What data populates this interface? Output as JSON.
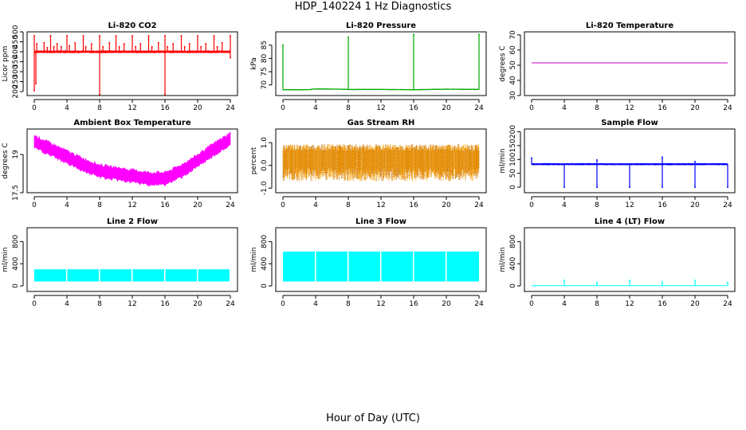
{
  "figure": {
    "title": "HDP_140224  1 Hz Diagnostics",
    "xlabel": "Hour of Day (UTC)"
  },
  "chart_data": [
    {
      "type": "line",
      "title": "Li-820 CO2",
      "ylabel": "Licor ppm",
      "color": "#ff0000",
      "xlim": [
        0,
        24
      ],
      "xticks": [
        0,
        4,
        8,
        12,
        16,
        20,
        24
      ],
      "ylim": [
        180,
        500
      ],
      "yticks": [
        200,
        250,
        300,
        350,
        400,
        450,
        500
      ],
      "series": [
        {
          "kind": "band",
          "baseline": [
            [
              0,
              400
            ],
            [
              24,
              400
            ]
          ],
          "spread": 6,
          "spikes_up": [
            [
              0,
              480
            ],
            [
              0.3,
              440
            ],
            [
              1.2,
              445
            ],
            [
              1.6,
              420
            ],
            [
              2,
              480
            ],
            [
              2.4,
              425
            ],
            [
              2.8,
              440
            ],
            [
              3.3,
              425
            ],
            [
              4,
              480
            ],
            [
              4.3,
              430
            ],
            [
              5,
              445
            ],
            [
              6,
              480
            ],
            [
              6.3,
              425
            ],
            [
              7,
              440
            ],
            [
              8,
              480
            ],
            [
              8.4,
              425
            ],
            [
              9.2,
              445
            ],
            [
              10,
              480
            ],
            [
              10.4,
              425
            ],
            [
              11,
              440
            ],
            [
              12,
              480
            ],
            [
              12.4,
              425
            ],
            [
              13,
              440
            ],
            [
              14,
              480
            ],
            [
              14.4,
              425
            ],
            [
              15.2,
              445
            ],
            [
              16,
              480
            ],
            [
              16.3,
              425
            ],
            [
              17,
              440
            ],
            [
              18,
              480
            ],
            [
              18.4,
              425
            ],
            [
              19,
              440
            ],
            [
              20,
              480
            ],
            [
              20.4,
              425
            ],
            [
              21,
              440
            ],
            [
              22,
              480
            ],
            [
              22.4,
              425
            ],
            [
              23,
              445
            ],
            [
              24,
              480
            ]
          ],
          "spikes_down": [
            [
              0,
              205
            ],
            [
              0.2,
              240
            ],
            [
              8,
              185
            ],
            [
              16,
              185
            ],
            [
              24,
              370
            ]
          ]
        }
      ]
    },
    {
      "type": "line",
      "title": "Li-820 Pressure",
      "ylabel": "kPa",
      "color": "#00aa00",
      "xlim": [
        0,
        24
      ],
      "xticks": [
        0,
        4,
        8,
        12,
        16,
        20,
        24
      ],
      "ylim": [
        66,
        90
      ],
      "yticks": [
        70,
        75,
        80,
        85
      ],
      "series": [
        {
          "kind": "band",
          "baseline": [
            [
              0,
              68.2
            ],
            [
              3,
              68.2
            ],
            [
              4,
              68.5
            ],
            [
              7,
              68.4
            ],
            [
              8,
              68.3
            ],
            [
              12,
              68.3
            ],
            [
              16,
              68.2
            ],
            [
              20,
              68.4
            ],
            [
              24,
              68.3
            ]
          ],
          "spread": 0.15,
          "spikes_up": [
            [
              0,
              85
            ],
            [
              8,
              88
            ],
            [
              16,
              89
            ],
            [
              24,
              89
            ]
          ],
          "spikes_down": []
        }
      ]
    },
    {
      "type": "line",
      "title": "Li-820 Temperature",
      "ylabel": "degrees C",
      "color": "#cc00cc",
      "xlim": [
        0,
        24
      ],
      "xticks": [
        0,
        4,
        8,
        12,
        16,
        20,
        24
      ],
      "ylim": [
        30,
        72
      ],
      "yticks": [
        30,
        40,
        50,
        60,
        70
      ],
      "series": [
        {
          "kind": "line",
          "points": [
            [
              0,
              51.5
            ],
            [
              24,
              51.5
            ]
          ]
        }
      ]
    },
    {
      "type": "line",
      "title": "Ambient Box Temperature",
      "ylabel": "degrees C",
      "color": "#ff00ff",
      "xlim": [
        0,
        24
      ],
      "xticks": [
        0,
        4,
        8,
        12,
        16,
        20,
        24
      ],
      "ylim": [
        17.5,
        20.0
      ],
      "yticks": [
        17.5,
        19.0
      ],
      "series": [
        {
          "kind": "band",
          "baseline": [
            [
              0,
              19.5
            ],
            [
              2,
              19.2
            ],
            [
              4,
              18.9
            ],
            [
              6,
              18.6
            ],
            [
              8,
              18.35
            ],
            [
              10,
              18.25
            ],
            [
              12,
              18.15
            ],
            [
              14,
              18.05
            ],
            [
              16,
              18.05
            ],
            [
              18,
              18.35
            ],
            [
              20,
              18.75
            ],
            [
              22,
              19.2
            ],
            [
              24,
              19.6
            ]
          ],
          "spread": 0.3,
          "spikes_up": [],
          "spikes_down": []
        }
      ]
    },
    {
      "type": "line",
      "title": "Gas Stream RH",
      "ylabel": "percent",
      "color": "#ffa500",
      "edge": "#c87000",
      "xlim": [
        0,
        24
      ],
      "xticks": [
        0,
        4,
        8,
        12,
        16,
        20,
        24
      ],
      "ylim": [
        -1.2,
        1.6
      ],
      "yticks": [
        -1.0,
        0.0,
        1.0
      ],
      "series": [
        {
          "kind": "noise",
          "baseline": [
            [
              0,
              0.15
            ],
            [
              24,
              0.15
            ]
          ],
          "spread": 0.65,
          "low": -0.8,
          "high": 1.1
        }
      ]
    },
    {
      "type": "line",
      "title": "Sample Flow",
      "ylabel": "ml/min",
      "color": "#0000ff",
      "xlim": [
        0,
        24
      ],
      "xticks": [
        0,
        4,
        8,
        12,
        16,
        20,
        24
      ],
      "ylim": [
        -20,
        210
      ],
      "yticks": [
        0,
        50,
        100,
        150,
        200
      ],
      "series": [
        {
          "kind": "band",
          "baseline": [
            [
              0,
              83
            ],
            [
              24,
              83
            ]
          ],
          "spread": 3,
          "spikes_up": [
            [
              0,
              105
            ],
            [
              8,
              98
            ],
            [
              16,
              108
            ],
            [
              20,
              92
            ]
          ],
          "spikes_down": [
            [
              4,
              0
            ],
            [
              8,
              0
            ],
            [
              12,
              0
            ],
            [
              16,
              0
            ],
            [
              20,
              0
            ],
            [
              24,
              0
            ]
          ]
        }
      ]
    },
    {
      "type": "area",
      "title": "Line 2 Flow",
      "ylabel": "ml/min",
      "color": "#00ffff",
      "xlim": [
        0,
        24
      ],
      "xticks": [
        0,
        4,
        8,
        12,
        16,
        20,
        24
      ],
      "ylim": [
        -100,
        1050
      ],
      "yticks": [
        0,
        400,
        800
      ],
      "series": [
        {
          "kind": "blocks",
          "low": 80,
          "high": 300,
          "segments": [
            [
              0,
              3.9
            ],
            [
              4.05,
              7.9
            ],
            [
              8.05,
              11.9
            ],
            [
              12.05,
              15.9
            ],
            [
              16.05,
              19.9
            ],
            [
              20.05,
              23.9
            ]
          ]
        }
      ]
    },
    {
      "type": "area",
      "title": "Line 3 Flow",
      "ylabel": "ml/min",
      "color": "#00ffff",
      "xlim": [
        0,
        24
      ],
      "xticks": [
        0,
        4,
        8,
        12,
        16,
        20,
        24
      ],
      "ylim": [
        -100,
        1050
      ],
      "yticks": [
        0,
        400,
        800
      ],
      "series": [
        {
          "kind": "blocks",
          "low": 80,
          "high": 620,
          "segments": [
            [
              0,
              3.9
            ],
            [
              4.05,
              7.9
            ],
            [
              8.05,
              11.9
            ],
            [
              12.05,
              15.9
            ],
            [
              16.05,
              19.9
            ],
            [
              20.05,
              24
            ]
          ]
        }
      ]
    },
    {
      "type": "line",
      "title": "Line 4 (LT) Flow",
      "ylabel": "ml/min",
      "color": "#00ffff",
      "xlim": [
        0,
        24
      ],
      "xticks": [
        0,
        4,
        8,
        12,
        16,
        20,
        24
      ],
      "ylim": [
        -100,
        1050
      ],
      "yticks": [
        0,
        400,
        800
      ],
      "series": [
        {
          "kind": "band",
          "baseline": [
            [
              0,
              5
            ],
            [
              24,
              5
            ]
          ],
          "spread": 0,
          "spikes_up": [
            [
              4,
              100
            ],
            [
              8,
              60
            ],
            [
              12,
              100
            ],
            [
              16,
              70
            ],
            [
              20,
              100
            ],
            [
              24,
              60
            ]
          ],
          "spikes_down": []
        }
      ]
    }
  ]
}
